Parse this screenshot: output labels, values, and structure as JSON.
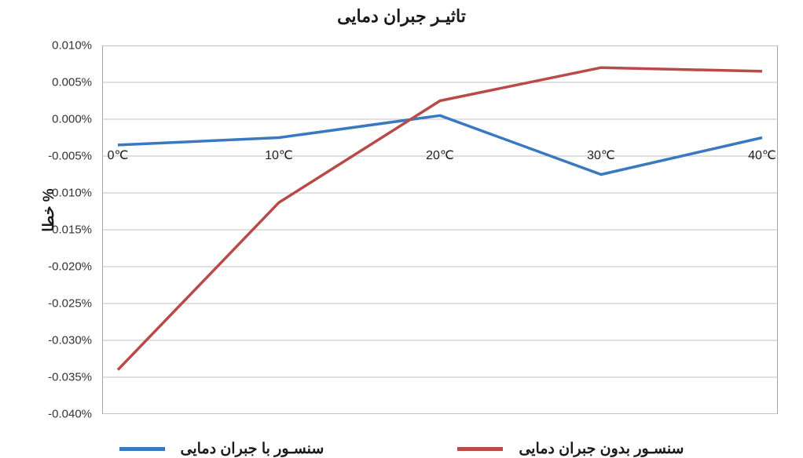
{
  "chart": {
    "type": "line",
    "title": "تاثیـر جبران دمایی",
    "title_fontsize": 22,
    "background_color": "#ffffff",
    "grid_color": "#c0c0c0",
    "border_color": "#888888",
    "yaxis": {
      "title": "خطا %",
      "title_fontsize": 19,
      "ticks": [
        0.01,
        0.005,
        0.0,
        -0.005,
        -0.01,
        -0.015,
        -0.02,
        -0.025,
        -0.03,
        -0.035,
        -0.04
      ],
      "tick_labels": [
        "0.010%",
        "0.005%",
        "0.000%",
        "-0.005%",
        "-0.010%",
        "-0.015%",
        "-0.020%",
        "-0.025%",
        "-0.030%",
        "-0.035%",
        "-0.040%"
      ],
      "min": -0.04,
      "max": 0.01,
      "label_fontsize": 15
    },
    "xaxis": {
      "ticks": [
        0,
        10,
        20,
        30,
        40
      ],
      "tick_labels": [
        "0℃",
        "10℃",
        "20℃",
        "30℃",
        "40℃"
      ],
      "label_fontsize": 16,
      "label_y_value": -0.004
    },
    "series": [
      {
        "name": "سنسـور با جبران دمایی",
        "color": "#3a79bf",
        "line_width": 3.5,
        "x": [
          0,
          10,
          20,
          30,
          40
        ],
        "y": [
          -0.0035,
          -0.0025,
          0.0005,
          -0.0075,
          -0.0025
        ]
      },
      {
        "name": "سنسـور بدون جبران دمایی",
        "color": "#b94a48",
        "line_width": 3.5,
        "x": [
          0,
          10,
          20,
          30,
          40
        ],
        "y": [
          -0.034,
          -0.0113,
          0.0025,
          0.007,
          0.0065
        ]
      }
    ],
    "legend": {
      "fontsize": 19,
      "fontweight": "700",
      "swatch_width": 58,
      "swatch_height": 5
    }
  }
}
